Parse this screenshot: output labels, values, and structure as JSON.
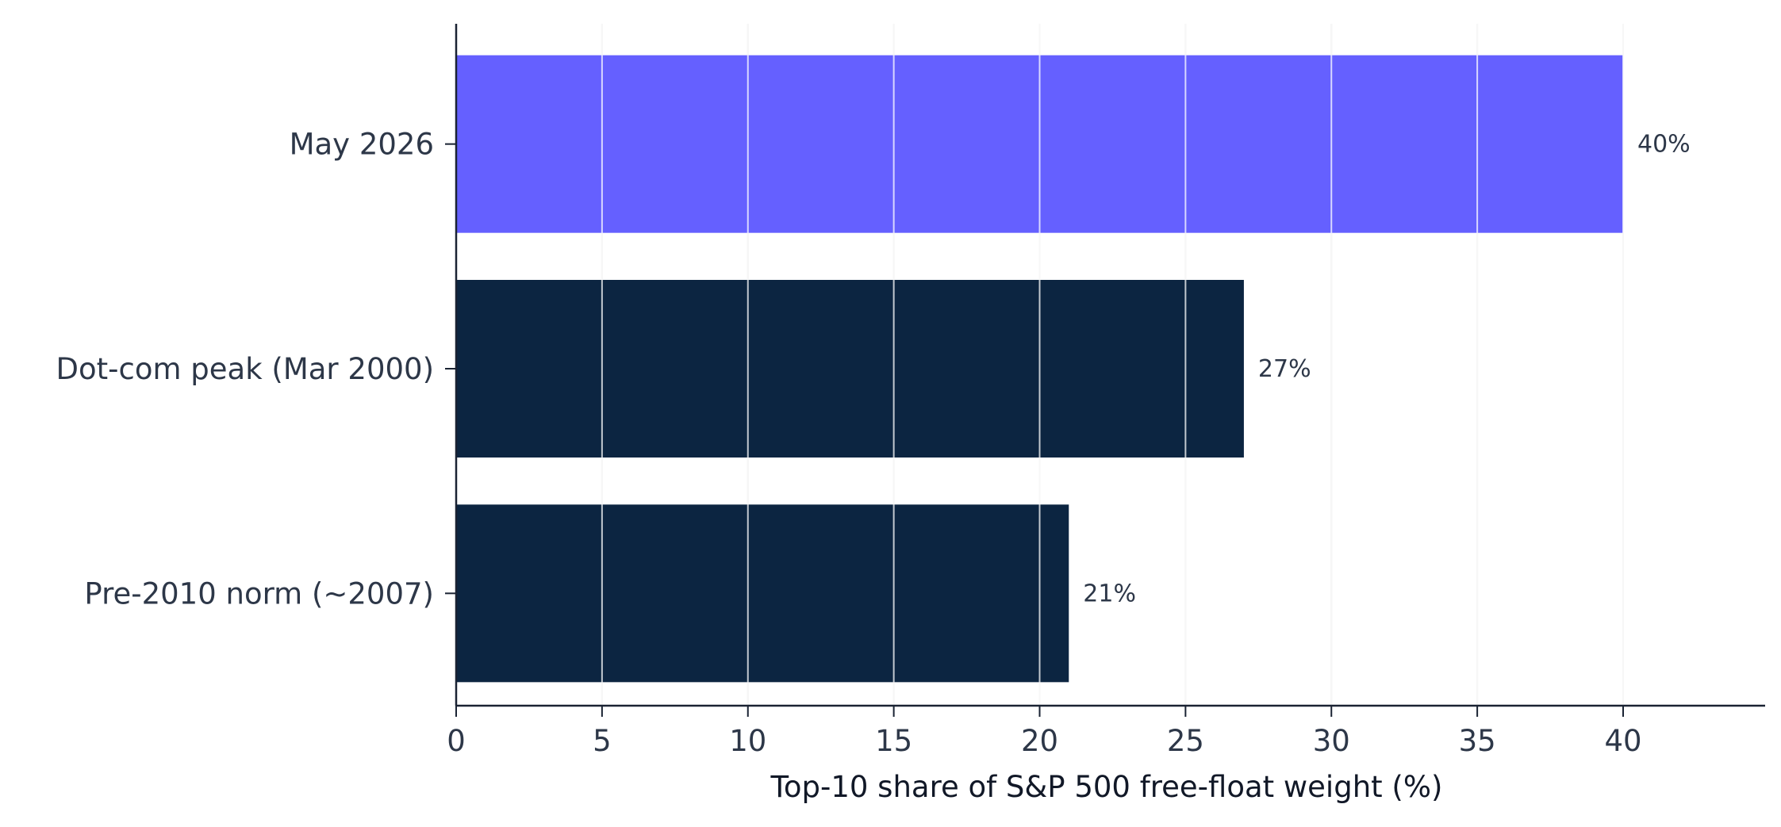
{
  "chart_data": {
    "type": "bar",
    "orientation": "horizontal",
    "categories": [
      "May 2026",
      "Dot-com peak (Mar 2000)",
      "Pre-2010 norm (~2007)"
    ],
    "values": [
      40,
      27,
      21
    ],
    "data_labels": [
      "40%",
      "27%",
      "21%"
    ],
    "xlabel": "Top-10 share of S&P 500 free-float weight (%)",
    "ylabel": "",
    "xlim": [
      0,
      44.8
    ],
    "xticks": [
      0,
      5,
      10,
      15,
      20,
      25,
      30,
      35,
      40
    ],
    "grid": "vertical",
    "bar_colors": [
      "#6560ff",
      "#0c2541",
      "#0c2541"
    ],
    "colors": {
      "highlight": "#6560ff",
      "base": "#0c2541",
      "grid": "#dedede",
      "axis": "#1a2333",
      "text": "#2d3748"
    }
  }
}
